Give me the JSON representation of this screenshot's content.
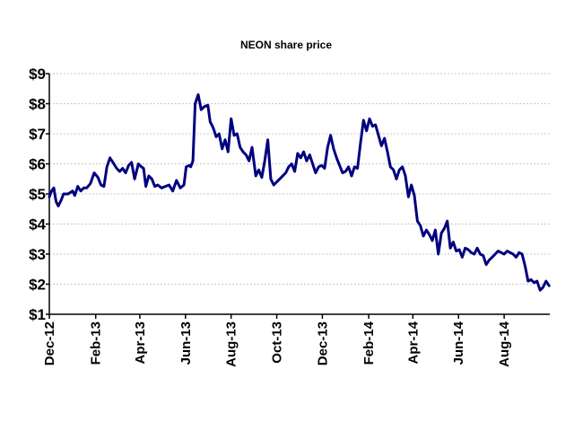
{
  "chart_data": {
    "type": "line",
    "title": "NEON share price",
    "xlabel": "",
    "ylabel": "",
    "ylim": [
      1,
      9
    ],
    "y_ticks": [
      1,
      2,
      3,
      4,
      5,
      6,
      7,
      8,
      9
    ],
    "y_tick_labels": [
      "$1",
      "$2",
      "$3",
      "$4",
      "$5",
      "$6",
      "$7",
      "$8",
      "$9"
    ],
    "x_range": [
      "2012-12-01",
      "2014-10-01"
    ],
    "x_ticks": [
      "2012-12-01",
      "2013-02-01",
      "2013-04-01",
      "2013-06-01",
      "2013-08-01",
      "2013-10-01",
      "2013-12-01",
      "2014-02-01",
      "2014-04-01",
      "2014-06-01",
      "2014-08-01"
    ],
    "x_tick_labels": [
      "Dec-12",
      "Feb-13",
      "Apr-13",
      "Jun-13",
      "Aug-13",
      "Oct-13",
      "Dec-13",
      "Feb-14",
      "Apr-14",
      "Jun-14",
      "Aug-14"
    ],
    "grid": "horizontal dashed",
    "legend": "none",
    "colors": {
      "series": "#00007f",
      "grid": "#c8c8c8",
      "axis": "#000000"
    },
    "series": [
      {
        "x": [
          "2012-12-01",
          "2012-12-04",
          "2012-12-07",
          "2012-12-10",
          "2012-12-13",
          "2012-12-17",
          "2012-12-20",
          "2012-12-26",
          "2013-01-01",
          "2013-01-04",
          "2013-01-08",
          "2013-01-12",
          "2013-01-16",
          "2013-01-20",
          "2013-01-25",
          "2013-01-30",
          "2013-02-04",
          "2013-02-08",
          "2013-02-12",
          "2013-02-16",
          "2013-02-20",
          "2013-02-24",
          "2013-03-01",
          "2013-03-05",
          "2013-03-09",
          "2013-03-13",
          "2013-03-17",
          "2013-03-21",
          "2013-03-25",
          "2013-03-30",
          "2013-04-03",
          "2013-04-06",
          "2013-04-09",
          "2013-04-13",
          "2013-04-17",
          "2013-04-21",
          "2013-04-25",
          "2013-04-30",
          "2013-05-05",
          "2013-05-10",
          "2013-05-15",
          "2013-05-20",
          "2013-05-25",
          "2013-05-30",
          "2013-06-02",
          "2013-06-06",
          "2013-06-08",
          "2013-06-11",
          "2013-06-14",
          "2013-06-18",
          "2013-06-22",
          "2013-06-26",
          "2013-07-01",
          "2013-07-04",
          "2013-07-08",
          "2013-07-12",
          "2013-07-16",
          "2013-07-20",
          "2013-07-24",
          "2013-07-28",
          "2013-08-01",
          "2013-08-05",
          "2013-08-09",
          "2013-08-13",
          "2013-08-17",
          "2013-08-21",
          "2013-08-25",
          "2013-08-29",
          "2013-09-03",
          "2013-09-07",
          "2013-09-11",
          "2013-09-15",
          "2013-09-19",
          "2013-09-23",
          "2013-09-27",
          "2013-10-01",
          "2013-10-05",
          "2013-10-09",
          "2013-10-13",
          "2013-10-17",
          "2013-10-21",
          "2013-10-25",
          "2013-10-29",
          "2013-11-02",
          "2013-11-06",
          "2013-11-10",
          "2013-11-14",
          "2013-11-18",
          "2013-11-22",
          "2013-11-26",
          "2013-11-30",
          "2013-12-04",
          "2013-12-08",
          "2013-12-12",
          "2013-12-16",
          "2013-12-20",
          "2013-12-24",
          "2013-12-28",
          "2014-01-01",
          "2014-01-05",
          "2014-01-09",
          "2014-01-13",
          "2014-01-17",
          "2014-01-21",
          "2014-01-25",
          "2014-01-29",
          "2014-02-02",
          "2014-02-06",
          "2014-02-10",
          "2014-02-14",
          "2014-02-18",
          "2014-02-22",
          "2014-02-26",
          "2014-03-02",
          "2014-03-06",
          "2014-03-10",
          "2014-03-14",
          "2014-03-18",
          "2014-03-22",
          "2014-03-26",
          "2014-03-30",
          "2014-04-03",
          "2014-04-07",
          "2014-04-11",
          "2014-04-15",
          "2014-04-19",
          "2014-04-23",
          "2014-04-27",
          "2014-05-01",
          "2014-05-05",
          "2014-05-09",
          "2014-05-13",
          "2014-05-17",
          "2014-05-21",
          "2014-05-25",
          "2014-05-29",
          "2014-06-02",
          "2014-06-06",
          "2014-06-10",
          "2014-06-14",
          "2014-06-18",
          "2014-06-22",
          "2014-06-26",
          "2014-06-30",
          "2014-07-04",
          "2014-07-08",
          "2014-07-12",
          "2014-07-16",
          "2014-07-20",
          "2014-07-24",
          "2014-07-28",
          "2014-08-01",
          "2014-08-05",
          "2014-08-09",
          "2014-08-13",
          "2014-08-17",
          "2014-08-21",
          "2014-08-25",
          "2014-08-29",
          "2014-09-02",
          "2014-09-06",
          "2014-09-10",
          "2014-09-14",
          "2014-09-18",
          "2014-09-22",
          "2014-09-26",
          "2014-09-30"
        ],
        "y": [
          4.9,
          5.1,
          5.2,
          4.75,
          4.6,
          4.8,
          5.0,
          5.0,
          5.1,
          4.95,
          5.25,
          5.1,
          5.2,
          5.2,
          5.35,
          5.7,
          5.55,
          5.3,
          5.25,
          5.9,
          6.2,
          6.05,
          5.85,
          5.75,
          5.85,
          5.7,
          5.95,
          6.05,
          5.5,
          6.0,
          5.9,
          5.85,
          5.25,
          5.6,
          5.5,
          5.25,
          5.3,
          5.2,
          5.25,
          5.3,
          5.1,
          5.45,
          5.2,
          5.3,
          5.9,
          5.95,
          5.9,
          6.1,
          8.0,
          8.3,
          7.8,
          7.9,
          7.95,
          7.4,
          7.2,
          6.9,
          7.0,
          6.5,
          6.8,
          6.4,
          7.5,
          6.95,
          7.0,
          6.55,
          6.4,
          6.3,
          6.1,
          6.55,
          5.6,
          5.8,
          5.55,
          6.1,
          6.8,
          5.5,
          5.3,
          5.4,
          5.5,
          5.6,
          5.7,
          5.9,
          6.0,
          5.75,
          6.35,
          6.2,
          6.4,
          6.1,
          6.3,
          6.0,
          5.7,
          5.9,
          5.95,
          5.85,
          6.55,
          6.95,
          6.5,
          6.2,
          5.95,
          5.7,
          5.75,
          5.9,
          5.6,
          5.9,
          5.85,
          6.7,
          7.45,
          7.1,
          7.5,
          7.25,
          7.3,
          6.95,
          6.6,
          6.85,
          6.4,
          5.9,
          5.8,
          5.5,
          5.8,
          5.9,
          5.6,
          4.9,
          5.3,
          4.95,
          4.1,
          3.95,
          3.6,
          3.8,
          3.65,
          3.45,
          3.8,
          3.0,
          3.7,
          3.85,
          4.1,
          3.2,
          3.4,
          3.1,
          3.15,
          2.9,
          3.2,
          3.15,
          3.05,
          3.0,
          3.2,
          3.0,
          2.95,
          2.65,
          2.8,
          2.9,
          3.0,
          3.1,
          3.05,
          3.0,
          3.1,
          3.05,
          3.0,
          2.9,
          3.05,
          3.0,
          2.6,
          2.1,
          2.15,
          2.05,
          2.1,
          1.8,
          1.9,
          2.1,
          1.95
        ]
      }
    ]
  }
}
